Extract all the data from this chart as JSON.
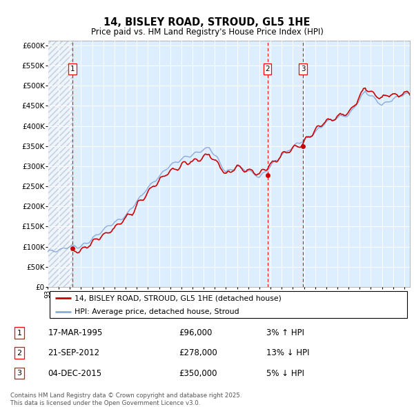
{
  "title": "14, BISLEY ROAD, STROUD, GL5 1HE",
  "subtitle": "Price paid vs. HM Land Registry's House Price Index (HPI)",
  "ylabel_ticks": [
    0,
    50000,
    100000,
    150000,
    200000,
    250000,
    300000,
    350000,
    400000,
    450000,
    500000,
    550000,
    600000
  ],
  "ylabel_labels": [
    "£0",
    "£50K",
    "£100K",
    "£150K",
    "£200K",
    "£250K",
    "£300K",
    "£350K",
    "£400K",
    "£450K",
    "£500K",
    "£550K",
    "£600K"
  ],
  "xmin": 1993.0,
  "xmax": 2025.5,
  "ymin": 0,
  "ymax": 612000,
  "sale_dates": [
    1995.21,
    2012.72,
    2015.92
  ],
  "sale_prices": [
    96000,
    278000,
    350000
  ],
  "sale_labels": [
    "1",
    "2",
    "3"
  ],
  "sale_info": [
    {
      "num": "1",
      "date": "17-MAR-1995",
      "price": "£96,000",
      "hpi": "3% ↑ HPI"
    },
    {
      "num": "2",
      "date": "21-SEP-2012",
      "price": "£278,000",
      "hpi": "13% ↓ HPI"
    },
    {
      "num": "3",
      "date": "04-DEC-2015",
      "price": "£350,000",
      "hpi": "5% ↓ HPI"
    }
  ],
  "legend_line1": "14, BISLEY ROAD, STROUD, GL5 1HE (detached house)",
  "legend_line2": "HPI: Average price, detached house, Stroud",
  "red_line_color": "#cc0000",
  "blue_line_color": "#88aadd",
  "chart_bg": "#ddeeff",
  "footer": "Contains HM Land Registry data © Crown copyright and database right 2025.\nThis data is licensed under the Open Government Licence v3.0."
}
